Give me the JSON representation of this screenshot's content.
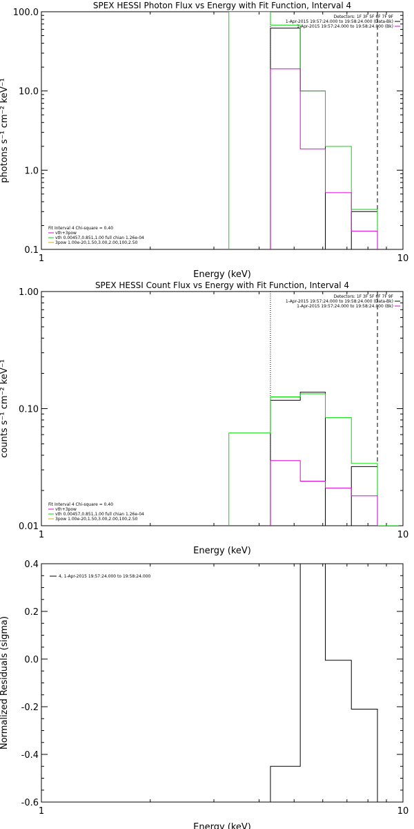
{
  "colors": {
    "data": "#000000",
    "fit": "#00dd00",
    "vth": "#dd00dd",
    "bpow": "#ddaa00"
  },
  "chart_data": [
    {
      "type": "line",
      "title": "SPEX HESSI Photon Flux vs Energy with Fit Function, Interval 4",
      "xlabel": "Energy (keV)",
      "ylabel": "photons s⁻¹ cm⁻² keV⁻¹",
      "xscale": "log",
      "yscale": "log",
      "xlim": [
        1,
        10
      ],
      "ylim": [
        0.1,
        100
      ],
      "xticks": [
        {
          "v": 1,
          "label": "1"
        },
        {
          "v": 10,
          "label": "10"
        }
      ],
      "yticks": [
        {
          "v": 0.1,
          "label": "0.1"
        },
        {
          "v": 1,
          "label": "1.0"
        },
        {
          "v": 10,
          "label": "10.0"
        },
        {
          "v": 100,
          "label": "100.0"
        }
      ],
      "vlines": [
        {
          "x": 4.3,
          "style": "dotted"
        },
        {
          "x": 8.5,
          "style": "dashed"
        }
      ],
      "legend_tr": [
        "Detectors: 1F 3F 5F 6F 7F 9F",
        "1-Apr-2015 19:57:24.000 to 19:58:24.000 (Data-Bk)",
        "1-Apr-2015 19:57:24.000 to 19:58:24.000 (Bk)"
      ],
      "legend_bl": [
        "Fit Interval  4    Chi-square = 0.40",
        "vth+3pow",
        "vth 0.00457,0.851,1.00  full chian 1.26e-04",
        "3pow 1.00e-20,1.50,3.00,2.00,100,2.50"
      ],
      "series": [
        {
          "name": "data",
          "color": "#000000",
          "edges": [
            4.3,
            5.2,
            6.1,
            7.2,
            8.5
          ],
          "values": [
            62,
            10,
            null,
            0.3
          ]
        },
        {
          "name": "fit",
          "color": "#00dd00",
          "edges": [
            3.3,
            4.3,
            5.2,
            6.1,
            7.2,
            8.5
          ],
          "values": [
            100,
            68,
            10,
            2.0,
            0.32
          ]
        },
        {
          "name": "bk",
          "color": "#dd00dd",
          "edges": [
            4.3,
            5.2,
            6.1,
            7.2,
            8.5
          ],
          "values": [
            19,
            1.85,
            0.52,
            0.17
          ]
        }
      ]
    },
    {
      "type": "line",
      "title": "SPEX HESSI Count Flux vs Energy with Fit Function, Interval 4",
      "xlabel": "Energy (keV)",
      "ylabel": "counts s⁻¹ cm⁻² keV⁻¹",
      "xscale": "log",
      "yscale": "log",
      "xlim": [
        1,
        10
      ],
      "ylim": [
        0.01,
        1
      ],
      "xticks": [
        {
          "v": 1,
          "label": "1"
        },
        {
          "v": 10,
          "label": "10"
        }
      ],
      "yticks": [
        {
          "v": 0.01,
          "label": "0.01"
        },
        {
          "v": 0.1,
          "label": "0.10"
        },
        {
          "v": 1,
          "label": "1.00"
        }
      ],
      "vlines": [
        {
          "x": 4.3,
          "style": "dotted"
        },
        {
          "x": 8.5,
          "style": "dashed"
        }
      ],
      "legend_tr": [
        "Detectors: 1F 3F 5F 6F 7F 9F",
        "1-Apr-2015 19:57:24.000 to 19:58:24.000 (Data-Bk)",
        "1-Apr-2015 19:57:24.000 to 19:58:24.000 (Bk)"
      ],
      "legend_bl": [
        "Fit Interval  4    Chi-square = 0.40",
        "vth+3pow",
        "vth 0.00457,0.851,1.00  full chian 1.26e-04",
        "3pow 1.00e-20,1.50,3.00,2.00,100,2.50"
      ],
      "series": [
        {
          "name": "data",
          "color": "#000000",
          "edges": [
            4.3,
            5.2,
            6.1,
            7.2,
            8.5
          ],
          "values": [
            0.118,
            0.138,
            null,
            0.032
          ]
        },
        {
          "name": "fit",
          "color": "#00dd00",
          "edges": [
            3.3,
            4.3,
            5.2,
            6.1,
            7.2,
            8.5,
            9.7
          ],
          "values": [
            0.062,
            0.126,
            0.134,
            0.084,
            0.034,
            0.01
          ]
        },
        {
          "name": "bk",
          "color": "#dd00dd",
          "edges": [
            4.3,
            5.2,
            6.1,
            7.2,
            8.5
          ],
          "values": [
            0.036,
            0.024,
            0.021,
            0.018
          ]
        }
      ]
    },
    {
      "type": "line",
      "title": "",
      "xlabel": "Energy (keV)",
      "ylabel": "Normalized Residuals (sigma)",
      "xscale": "log",
      "yscale": "linear",
      "xlim": [
        1,
        10
      ],
      "ylim": [
        -0.6,
        0.4
      ],
      "xticks": [
        {
          "v": 1,
          "label": "1"
        },
        {
          "v": 10,
          "label": "10"
        }
      ],
      "yticks": [
        {
          "v": -0.6,
          "label": "-0.6"
        },
        {
          "v": -0.4,
          "label": "-0.4"
        },
        {
          "v": -0.2,
          "label": "-0.2"
        },
        {
          "v": 0,
          "label": "0.0"
        },
        {
          "v": 0.2,
          "label": "0.2"
        },
        {
          "v": 0.4,
          "label": "0.4"
        }
      ],
      "vlines": [],
      "legend_tr": [],
      "legend_bl": [],
      "legend_tl": [
        "4, 1-Apr-2015 19:57:24.000 to 19:58:24.000"
      ],
      "series": [
        {
          "name": "residuals",
          "color": "#000000",
          "edges": [
            4.3,
            5.2,
            6.1,
            7.2,
            8.5
          ],
          "values": [
            -0.45,
            0.4,
            -0.005,
            -0.21
          ]
        }
      ]
    }
  ]
}
